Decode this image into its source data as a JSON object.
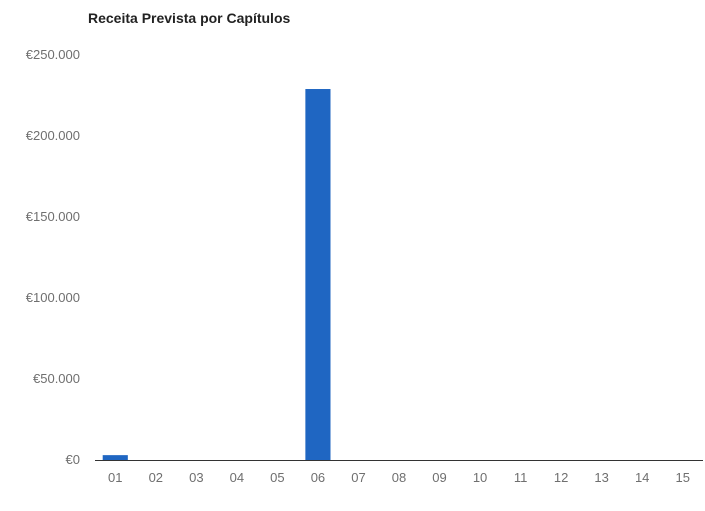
{
  "chart_data": {
    "type": "bar",
    "title": "Receita Prevista por Capítulos",
    "xlabel": "",
    "ylabel": "",
    "categories": [
      "01",
      "02",
      "03",
      "04",
      "05",
      "06",
      "07",
      "08",
      "09",
      "10",
      "11",
      "12",
      "13",
      "14",
      "15"
    ],
    "values": [
      3000,
      0,
      0,
      0,
      0,
      229000,
      0,
      0,
      0,
      0,
      0,
      0,
      0,
      0,
      0
    ],
    "ylim": [
      0,
      250000
    ],
    "yticks": [
      0,
      50000,
      100000,
      150000,
      200000,
      250000
    ],
    "ytick_labels": [
      "€0",
      "€50.000",
      "€100.000",
      "€150.000",
      "€200.000",
      "€250.000"
    ],
    "grid": false,
    "bar_color": "#1f66c2",
    "axis_color": "#333333"
  }
}
